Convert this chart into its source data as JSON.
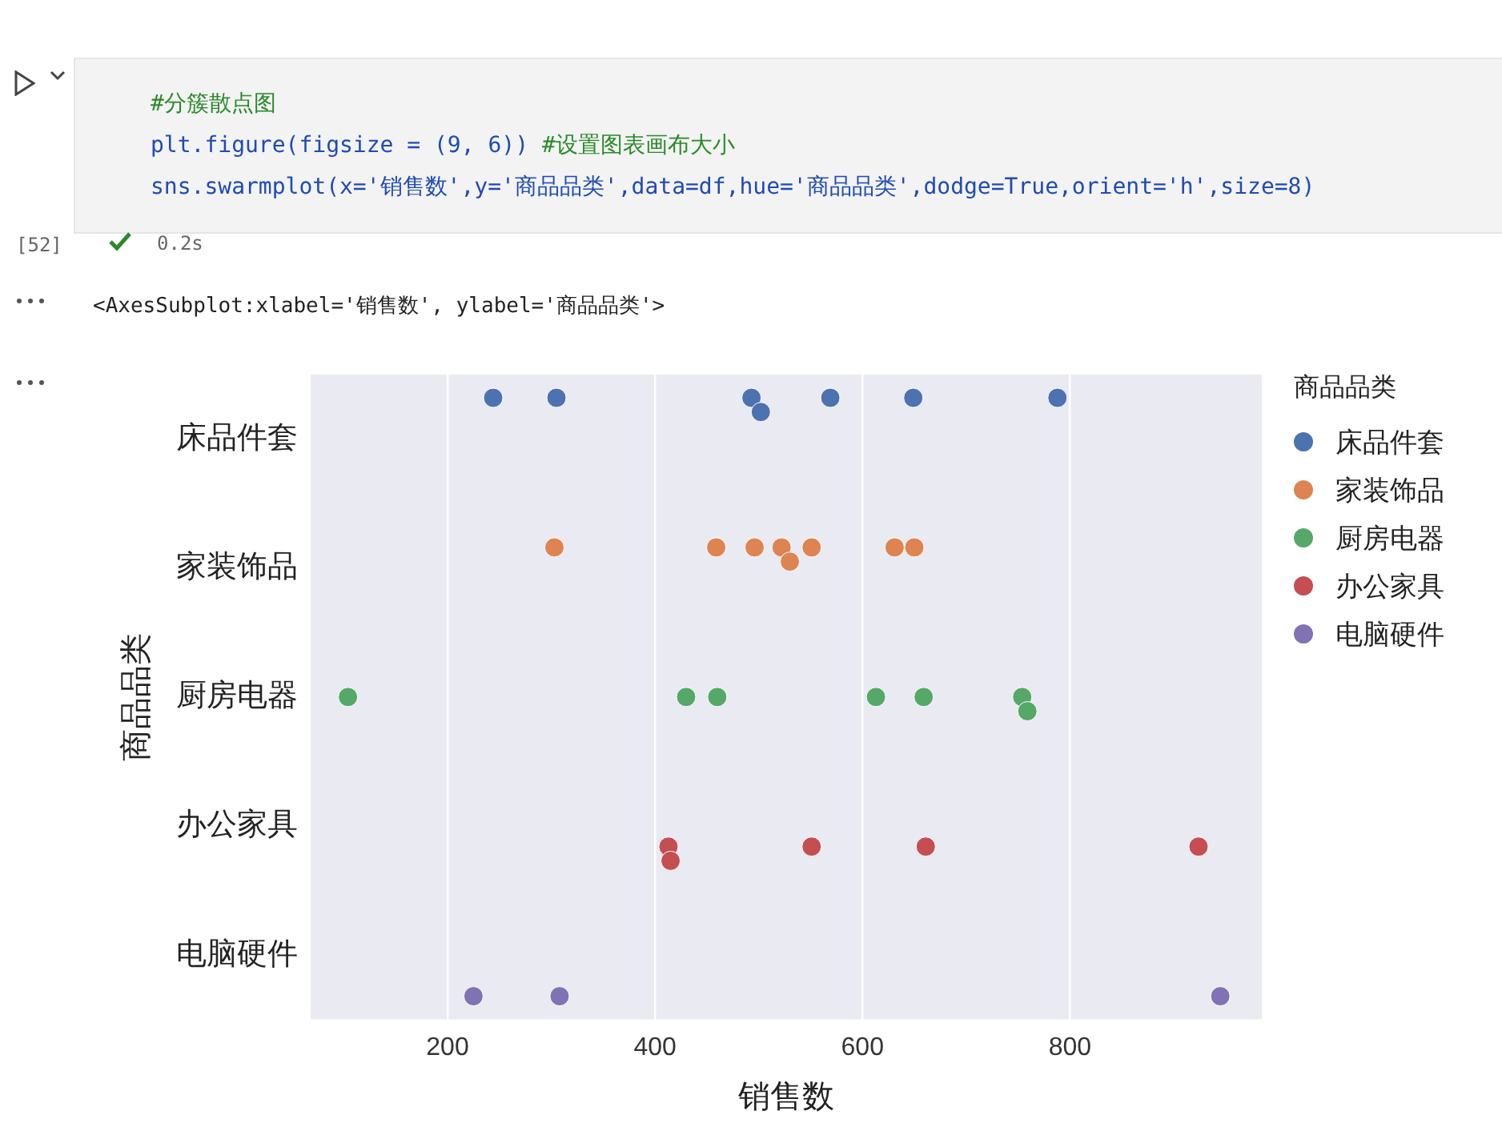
{
  "chart_data": {
    "type": "scatter",
    "orientation": "horizontal",
    "xlabel": "销售数",
    "ylabel": "商品品类",
    "legend_title": "商品品类",
    "categories": [
      "床品件套",
      "家装饰品",
      "厨房电器",
      "办公家具",
      "电脑硬件"
    ],
    "xlim": [
      68,
      985
    ],
    "xticks": [
      200,
      400,
      600,
      800
    ],
    "grid": "x",
    "legend": "right",
    "marker": "circle",
    "series": [
      {
        "name": "床品件套",
        "color": "#4c72b0",
        "x": [
          "床品件套",
          "床品件套",
          "床品件套",
          "床品件套",
          "床品件套",
          "床品件套",
          "床品件套"
        ],
        "values": [
          244,
          305,
          493,
          502,
          569,
          649,
          788
        ]
      },
      {
        "name": "家装饰品",
        "color": "#dd8452",
        "x": [
          "家装饰品",
          "家装饰品",
          "家装饰品",
          "家装饰品",
          "家装饰品",
          "家装饰品",
          "家装饰品",
          "家装饰品"
        ],
        "values": [
          303,
          459,
          496,
          522,
          530,
          551,
          631,
          650
        ]
      },
      {
        "name": "厨房电器",
        "color": "#55a868",
        "x": [
          "厨房电器",
          "厨房电器",
          "厨房电器",
          "厨房电器",
          "厨房电器",
          "厨房电器",
          "厨房电器"
        ],
        "values": [
          104,
          430,
          460,
          613,
          659,
          754,
          759
        ]
      },
      {
        "name": "办公家具",
        "color": "#c44e52",
        "x": [
          "办公家具",
          "办公家具",
          "办公家具",
          "办公家具",
          "办公家具"
        ],
        "values": [
          413,
          415,
          551,
          661,
          924
        ]
      },
      {
        "name": "电脑硬件",
        "color": "#8172b3",
        "x": [
          "电脑硬件",
          "电脑硬件",
          "电脑硬件"
        ],
        "values": [
          225,
          308,
          945
        ]
      }
    ],
    "annotations": [
      "#分簇散点图",
      "plt.figure(figsize = (9, 6)) #设置图表画布大小",
      "sns.swarmplot(x='销售数',y='商品品类',data=df,hue='商品品类',dodge=True,orient='h',size=8)",
      "[52]",
      "0.2s",
      "<AxesSubplot:xlabel='销售数', ylabel='商品品类'>"
    ]
  }
}
